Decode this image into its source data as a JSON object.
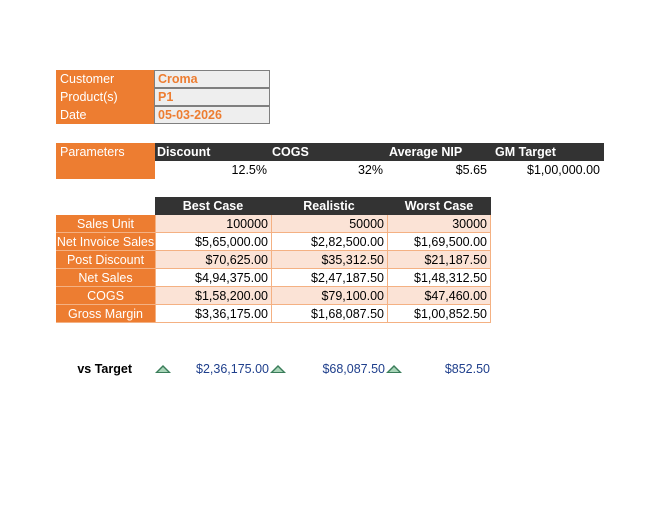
{
  "info": {
    "customer_label": "Customer",
    "customer_value": "Croma",
    "product_label": "Product(s)",
    "product_value": "P1",
    "date_label": "Date",
    "date_value": "05-03-2026"
  },
  "parameters": {
    "label": "Parameters",
    "headers": [
      "Discount",
      "COGS",
      "Average NIP",
      "GM Target"
    ],
    "values": [
      "12.5%",
      "32%",
      "$5.65",
      "$1,00,000.00"
    ]
  },
  "scenarios": {
    "headers": [
      "Best Case",
      "Realistic",
      "Worst Case"
    ],
    "rows": [
      {
        "label": "Sales Unit",
        "values": [
          "100000",
          "50000",
          "30000"
        ]
      },
      {
        "label": "Net Invoice Sales",
        "values": [
          "$5,65,000.00",
          "$2,82,500.00",
          "$1,69,500.00"
        ]
      },
      {
        "label": "Post Discount",
        "values": [
          "$70,625.00",
          "$35,312.50",
          "$21,187.50"
        ]
      },
      {
        "label": "Net Sales",
        "values": [
          "$4,94,375.00",
          "$2,47,187.50",
          "$1,48,312.50"
        ]
      },
      {
        "label": "COGS",
        "values": [
          "$1,58,200.00",
          "$79,100.00",
          "$47,460.00"
        ]
      },
      {
        "label": "Gross Margin",
        "values": [
          "$3,36,175.00",
          "$1,68,087.50",
          "$1,00,852.50"
        ]
      }
    ]
  },
  "vs_target": {
    "label": "vs Target",
    "values": [
      "$2,36,175.00",
      "$68,087.50",
      "$852.50"
    ],
    "indicator_icon": "up-triangle-icon",
    "indicator_color": "#3a7d5a"
  },
  "colors": {
    "accent": "#ed7d31",
    "header_dark": "#333333",
    "row_shade": "#fbe3d6",
    "vs_text": "#1f3f8c"
  }
}
